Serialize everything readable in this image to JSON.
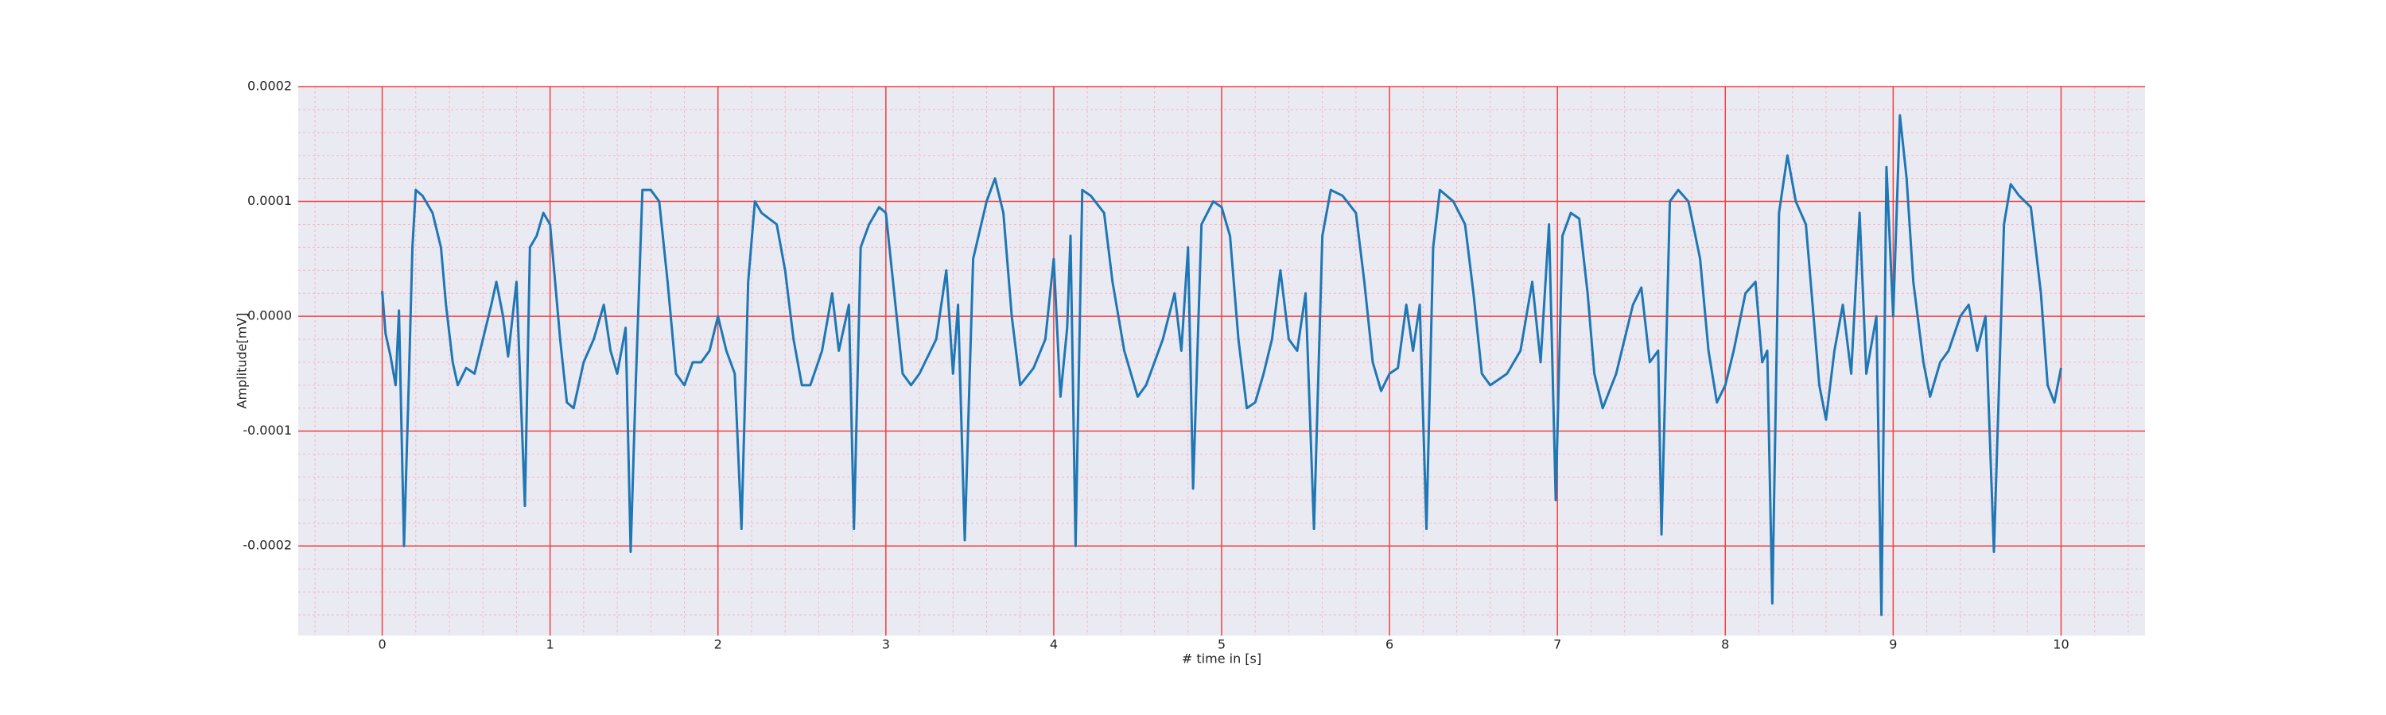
{
  "chart_data": {
    "type": "line",
    "xlabel": "# time in [s]",
    "ylabel": "Amplitude[mV]",
    "color": "#1f77b4",
    "grid": true,
    "background": "#eaeaf2",
    "grid_color": "#f04040",
    "minor_grid_color": "#f7b8c4",
    "xlim": [
      -0.5,
      10.5
    ],
    "ylim": [
      -0.000278,
      0.0002
    ],
    "xticks": [
      0,
      1,
      2,
      3,
      4,
      5,
      6,
      7,
      8,
      9,
      10
    ],
    "yticks": [
      {
        "value": -0.0002,
        "label": "-0.0002"
      },
      {
        "value": -0.0001,
        "label": "-0.0001"
      },
      {
        "value": 0,
        "label": "0.0000"
      },
      {
        "value": 0.0001,
        "label": "0.0001"
      },
      {
        "value": 0.0002,
        "label": "0.0002"
      }
    ],
    "xminorticks": [
      -0.4,
      -0.2,
      0.2,
      0.4,
      0.6,
      0.8,
      1.2,
      1.4,
      1.6,
      1.8,
      2.2,
      2.4,
      2.6,
      2.8,
      3.2,
      3.4,
      3.6,
      3.8,
      4.2,
      4.4,
      4.6,
      4.8,
      5.2,
      5.4,
      5.6,
      5.8,
      6.2,
      6.4,
      6.6,
      6.8,
      7.2,
      7.4,
      7.6,
      7.8,
      8.2,
      8.4,
      8.6,
      8.8,
      9.2,
      9.4,
      9.6,
      9.8,
      10.2,
      10.4
    ],
    "yminorticks": [
      -0.00026,
      -0.00024,
      -0.00022,
      -0.00018,
      -0.00016,
      -0.00014,
      -0.00012,
      -8e-05,
      -6e-05,
      -4e-05,
      -2e-05,
      2e-05,
      4e-05,
      6e-05,
      8e-05,
      0.00012,
      0.00014,
      0.00016,
      0.00018
    ],
    "x": [
      0,
      0.02,
      0.05,
      0.08,
      0.1,
      0.13,
      0.16,
      0.18,
      0.2,
      0.24,
      0.3,
      0.35,
      0.38,
      0.42,
      0.45,
      0.5,
      0.55,
      0.6,
      0.65,
      0.68,
      0.72,
      0.75,
      0.8,
      0.85,
      0.88,
      0.92,
      0.96,
      1.0,
      1.03,
      1.06,
      1.1,
      1.14,
      1.2,
      1.26,
      1.32,
      1.36,
      1.4,
      1.45,
      1.48,
      1.51,
      1.55,
      1.6,
      1.65,
      1.7,
      1.75,
      1.8,
      1.85,
      1.9,
      1.95,
      2.0,
      2.05,
      2.1,
      2.14,
      2.18,
      2.22,
      2.26,
      2.35,
      2.4,
      2.45,
      2.5,
      2.55,
      2.62,
      2.68,
      2.72,
      2.78,
      2.81,
      2.85,
      2.9,
      2.96,
      3.0,
      3.05,
      3.1,
      3.15,
      3.2,
      3.3,
      3.36,
      3.4,
      3.43,
      3.47,
      3.52,
      3.6,
      3.65,
      3.7,
      3.75,
      3.8,
      3.88,
      3.95,
      4.0,
      4.04,
      4.08,
      4.1,
      4.13,
      4.17,
      4.22,
      4.3,
      4.35,
      4.42,
      4.5,
      4.55,
      4.6,
      4.65,
      4.72,
      4.76,
      4.8,
      4.83,
      4.88,
      4.95,
      5.0,
      5.05,
      5.1,
      5.15,
      5.2,
      5.25,
      5.3,
      5.35,
      5.4,
      5.45,
      5.5,
      5.55,
      5.6,
      5.65,
      5.72,
      5.8,
      5.85,
      5.9,
      5.95,
      6.0,
      6.05,
      6.1,
      6.14,
      6.18,
      6.22,
      6.26,
      6.3,
      6.38,
      6.45,
      6.5,
      6.55,
      6.6,
      6.7,
      6.78,
      6.85,
      6.9,
      6.95,
      6.99,
      7.03,
      7.08,
      7.13,
      7.18,
      7.22,
      7.27,
      7.35,
      7.45,
      7.5,
      7.55,
      7.6,
      7.62,
      7.67,
      7.72,
      7.78,
      7.85,
      7.9,
      7.95,
      8.0,
      8.05,
      8.12,
      8.18,
      8.22,
      8.25,
      8.28,
      8.32,
      8.37,
      8.42,
      8.48,
      8.52,
      8.56,
      8.6,
      8.65,
      8.7,
      8.75,
      8.8,
      8.84,
      8.9,
      8.93,
      8.96,
      9.0,
      9.04,
      9.08,
      9.12,
      9.18,
      9.22,
      9.28,
      9.33,
      9.4,
      9.45,
      9.5,
      9.55,
      9.6,
      9.66,
      9.7,
      9.75,
      9.82,
      9.88,
      9.92,
      9.96,
      10.0
    ],
    "values": [
      2.2e-05,
      -1.5e-05,
      -3.5e-05,
      -6e-05,
      5e-06,
      -0.0002,
      -5e-05,
      6e-05,
      0.00011,
      0.000105,
      9e-05,
      6e-05,
      1e-05,
      -4e-05,
      -6e-05,
      -4.5e-05,
      -5e-05,
      -2e-05,
      1e-05,
      3e-05,
      0,
      -3.5e-05,
      3e-05,
      -0.000165,
      6e-05,
      7e-05,
      9e-05,
      8e-05,
      3e-05,
      -2e-05,
      -7.5e-05,
      -8e-05,
      -4e-05,
      -2e-05,
      1e-05,
      -3e-05,
      -5e-05,
      -1e-05,
      -0.000205,
      -6e-05,
      0.00011,
      0.00011,
      0.0001,
      3e-05,
      -5e-05,
      -6e-05,
      -4e-05,
      -4e-05,
      -3e-05,
      0,
      -3e-05,
      -5e-05,
      -0.000185,
      3e-05,
      0.0001,
      9e-05,
      8e-05,
      4e-05,
      -2e-05,
      -6e-05,
      -6e-05,
      -3e-05,
      2e-05,
      -3e-05,
      1e-05,
      -0.000185,
      6e-05,
      8e-05,
      9.5e-05,
      9e-05,
      2e-05,
      -5e-05,
      -6e-05,
      -5e-05,
      -2e-05,
      4e-05,
      -5e-05,
      1e-05,
      -0.000195,
      5e-05,
      0.0001,
      0.00012,
      9e-05,
      0,
      -6e-05,
      -4.5e-05,
      -2e-05,
      5e-05,
      -7e-05,
      -1e-05,
      7e-05,
      -0.0002,
      0.00011,
      0.000105,
      9e-05,
      3e-05,
      -3e-05,
      -7e-05,
      -6e-05,
      -4e-05,
      -2e-05,
      2e-05,
      -3e-05,
      6e-05,
      -0.00015,
      8e-05,
      0.0001,
      9.5e-05,
      7e-05,
      -2e-05,
      -8e-05,
      -7.5e-05,
      -5e-05,
      -2e-05,
      4e-05,
      -2e-05,
      -3e-05,
      2e-05,
      -0.000185,
      7e-05,
      0.00011,
      0.000105,
      9e-05,
      3e-05,
      -4e-05,
      -6.5e-05,
      -5e-05,
      -4.5e-05,
      1e-05,
      -3e-05,
      1e-05,
      -0.000185,
      6e-05,
      0.00011,
      0.0001,
      8e-05,
      2e-05,
      -5e-05,
      -6e-05,
      -5e-05,
      -3e-05,
      3e-05,
      -4e-05,
      8e-05,
      -0.00016,
      7e-05,
      9e-05,
      8.5e-05,
      2e-05,
      -5e-05,
      -8e-05,
      -5e-05,
      1e-05,
      2.5e-05,
      -4e-05,
      -3e-05,
      -0.00019,
      0.0001,
      0.00011,
      0.0001,
      5e-05,
      -3e-05,
      -7.5e-05,
      -6e-05,
      -3e-05,
      2e-05,
      3e-05,
      -4e-05,
      -3e-05,
      -0.00025,
      9e-05,
      0.00014,
      0.0001,
      8e-05,
      1e-05,
      -6e-05,
      -9e-05,
      -3e-05,
      1e-05,
      -5e-05,
      9e-05,
      -5e-05,
      0,
      -0.00026,
      0.00013,
      0,
      0.000175,
      0.00012,
      3e-05,
      -4e-05,
      -7e-05,
      -4e-05,
      -3e-05,
      0,
      1e-05,
      -3e-05,
      0,
      -0.000205,
      8e-05,
      0.000115,
      0.000105,
      9.5e-05,
      2e-05,
      -6e-05,
      -7.5e-05,
      -4.5e-05
    ]
  }
}
